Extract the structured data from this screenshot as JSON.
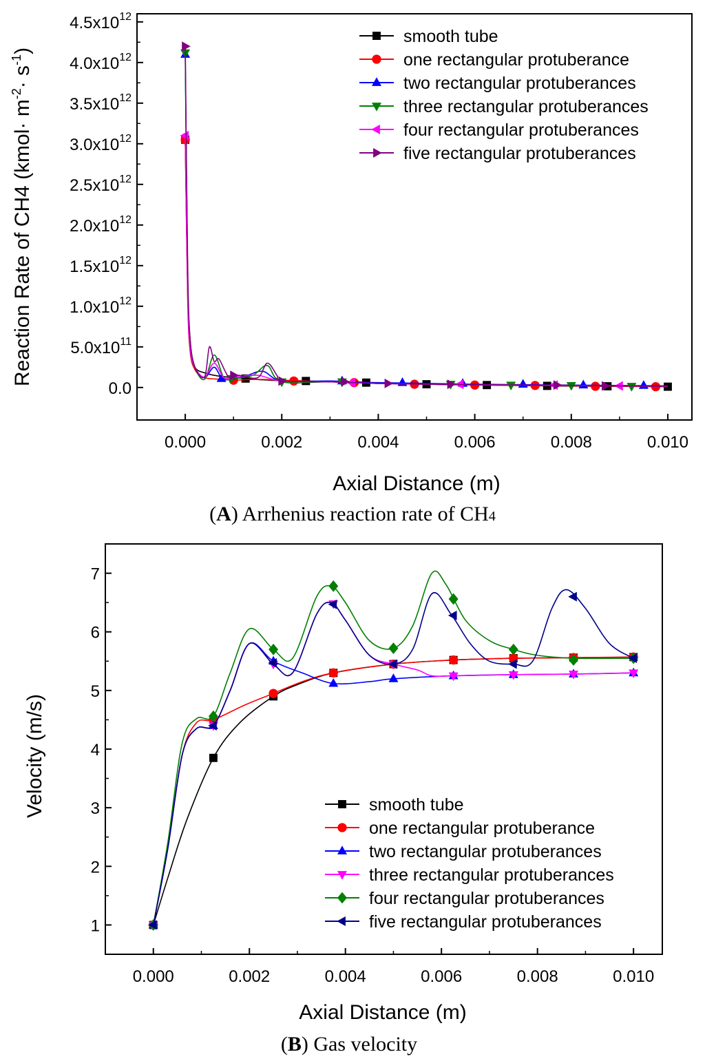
{
  "chart_data": [
    {
      "type": "line",
      "panel": "A",
      "caption_letter": "A",
      "caption_text": ") Arrhenius reaction rate of CH",
      "caption_sub": "4",
      "xlabel": "Axial Distance (m)",
      "ylabel": "Reaction Rate of CH4 (kmol· m-2· s-1)",
      "ylabel_main": "Reaction Rate of CH4 (kmol·  m",
      "ylabel_exp1": "-2",
      "ylabel_mid": "·  s",
      "ylabel_exp2": "-1",
      "ylabel_end": ")",
      "xlim": [
        -0.001,
        0.0105
      ],
      "ylim": [
        -400000000000.0,
        4600000000000.0
      ],
      "xticks": [
        {
          "v": 0.0,
          "label": "0.000"
        },
        {
          "v": 0.002,
          "label": "0.002"
        },
        {
          "v": 0.004,
          "label": "0.004"
        },
        {
          "v": 0.006,
          "label": "0.006"
        },
        {
          "v": 0.008,
          "label": "0.008"
        },
        {
          "v": 0.01,
          "label": "0.010"
        }
      ],
      "yticks": [
        {
          "v": 0,
          "label": "0.0"
        },
        {
          "v": 500000000000.0,
          "mant": "5.0x10",
          "exp": "11"
        },
        {
          "v": 1000000000000.0,
          "mant": "1.0x10",
          "exp": "12"
        },
        {
          "v": 1500000000000.0,
          "mant": "1.5x10",
          "exp": "12"
        },
        {
          "v": 2000000000000.0,
          "mant": "2.0x10",
          "exp": "12"
        },
        {
          "v": 2500000000000.0,
          "mant": "2.5x10",
          "exp": "12"
        },
        {
          "v": 3000000000000.0,
          "mant": "3.0x10",
          "exp": "12"
        },
        {
          "v": 3500000000000.0,
          "mant": "3.5x10",
          "exp": "12"
        },
        {
          "v": 4000000000000.0,
          "mant": "4.0x10",
          "exp": "12"
        },
        {
          "v": 4500000000000.0,
          "mant": "4.5x10",
          "exp": "12"
        }
      ],
      "legend_position": "top-right",
      "series": [
        {
          "name": "smooth tube",
          "color": "#000000",
          "marker": "square",
          "x": [
            0,
            5e-05,
            0.0001,
            0.0002,
            0.0004,
            0.0007,
            0.00125,
            0.00175,
            0.0025,
            0.00375,
            0.005,
            0.00625,
            0.0075,
            0.00875,
            0.01
          ],
          "y": [
            3050000000000.0,
            1200000000000.0,
            500000000000.0,
            250000000000.0,
            180000000000.0,
            140000000000.0,
            110000000000.0,
            90000000000.0,
            80000000000.0,
            60000000000.0,
            40000000000.0,
            30000000000.0,
            20000000000.0,
            15000000000.0,
            10000000000.0
          ],
          "marker_x": [
            0,
            0.00125,
            0.0025,
            0.00375,
            0.005,
            0.00625,
            0.0075,
            0.00875,
            0.01
          ],
          "marker_y": [
            3050000000000.0,
            110000000000.0,
            80000000000.0,
            60000000000.0,
            40000000000.0,
            30000000000.0,
            20000000000.0,
            15000000000.0,
            10000000000.0
          ]
        },
        {
          "name": "one rectangular protuberance",
          "color": "#ff0000",
          "marker": "circle",
          "x": [
            0,
            5e-05,
            0.0001,
            0.0002,
            0.0004,
            0.0008,
            0.001,
            0.0015,
            0.002,
            0.003,
            0.004,
            0.005,
            0.006,
            0.007,
            0.008,
            0.009,
            0.01
          ],
          "y": [
            3050000000000.0,
            1100000000000.0,
            450000000000.0,
            220000000000.0,
            120000000000.0,
            100000000000.0,
            90000000000.0,
            100000000000.0,
            90000000000.0,
            70000000000.0,
            50000000000.0,
            40000000000.0,
            30000000000.0,
            25000000000.0,
            20000000000.0,
            15000000000.0,
            10000000000.0
          ],
          "marker_x": [
            0,
            0.001,
            0.00225,
            0.0035,
            0.00475,
            0.006,
            0.00725,
            0.0085,
            0.00975
          ],
          "marker_y": [
            3050000000000.0,
            90000000000.0,
            80000000000.0,
            60000000000.0,
            40000000000.0,
            30000000000.0,
            25000000000.0,
            15000000000.0,
            10000000000.0
          ]
        },
        {
          "name": "two rectangular protuberances",
          "color": "#0000ff",
          "marker": "triangle-up",
          "x": [
            0,
            5e-05,
            0.0001,
            0.0002,
            0.0004,
            0.0006,
            0.0008,
            0.0012,
            0.0016,
            0.002,
            0.003,
            0.004,
            0.005,
            0.006,
            0.007,
            0.008,
            0.009,
            0.01
          ],
          "y": [
            4100000000000.0,
            1300000000000.0,
            500000000000.0,
            250000000000.0,
            120000000000.0,
            250000000000.0,
            100000000000.0,
            130000000000.0,
            200000000000.0,
            80000000000.0,
            80000000000.0,
            60000000000.0,
            50000000000.0,
            40000000000.0,
            35000000000.0,
            30000000000.0,
            25000000000.0,
            20000000000.0
          ],
          "marker_x": [
            0,
            0.00075,
            0.00325,
            0.0045,
            0.00575,
            0.007,
            0.00825,
            0.0095
          ],
          "marker_y": [
            4100000000000.0,
            110000000000.0,
            80000000000.0,
            60000000000.0,
            50000000000.0,
            40000000000.0,
            30000000000.0,
            25000000000.0
          ]
        },
        {
          "name": "three rectangular protuberances",
          "color": "#008000",
          "marker": "triangle-down",
          "x": [
            0,
            5e-05,
            0.0001,
            0.0002,
            0.0004,
            0.0006,
            0.0008,
            0.001,
            0.0014,
            0.0017,
            0.002,
            0.003,
            0.004,
            0.005,
            0.006,
            0.007,
            0.008,
            0.009,
            0.01
          ],
          "y": [
            4120000000000.0,
            1400000000000.0,
            600000000000.0,
            250000000000.0,
            100000000000.0,
            400000000000.0,
            120000000000.0,
            110000000000.0,
            150000000000.0,
            270000000000.0,
            70000000000.0,
            70000000000.0,
            50000000000.0,
            40000000000.0,
            35000000000.0,
            30000000000.0,
            25000000000.0,
            20000000000.0,
            15000000000.0
          ],
          "marker_x": [
            0,
            0.00095,
            0.002,
            0.00325,
            0.0055,
            0.00675,
            0.008,
            0.00925
          ],
          "marker_y": [
            4120000000000.0,
            110000000000.0,
            70000000000.0,
            70000000000.0,
            40000000000.0,
            30000000000.0,
            25000000000.0,
            15000000000.0
          ]
        },
        {
          "name": "four rectangular protuberances",
          "color": "#ff00ff",
          "marker": "triangle-left",
          "x": [
            0,
            5e-05,
            0.0001,
            0.0002,
            0.0004,
            0.0006,
            0.0008,
            0.001,
            0.0015,
            0.002,
            0.003,
            0.004,
            0.005,
            0.006,
            0.007,
            0.008,
            0.009,
            0.01
          ],
          "y": [
            3100000000000.0,
            1200000000000.0,
            500000000000.0,
            250000000000.0,
            130000000000.0,
            300000000000.0,
            120000000000.0,
            130000000000.0,
            150000000000.0,
            80000000000.0,
            70000000000.0,
            50000000000.0,
            40000000000.0,
            35000000000.0,
            30000000000.0,
            25000000000.0,
            20000000000.0,
            15000000000.0
          ],
          "marker_x": [
            0,
            0.00345,
            0.0057,
            0.00765,
            0.009
          ],
          "marker_y": [
            3100000000000.0,
            60000000000.0,
            40000000000.0,
            30000000000.0,
            20000000000.0
          ]
        },
        {
          "name": "five rectangular protuberances",
          "color": "#800080",
          "marker": "triangle-right",
          "x": [
            0,
            5e-05,
            0.0001,
            0.0002,
            0.0004,
            0.0005,
            0.0006,
            0.0007,
            0.0009,
            0.0011,
            0.0015,
            0.0017,
            0.0019,
            0.002,
            0.003,
            0.004,
            0.005,
            0.006,
            0.007,
            0.008,
            0.009,
            0.01
          ],
          "y": [
            4200000000000.0,
            1500000000000.0,
            600000000000.0,
            250000000000.0,
            130000000000.0,
            500000000000.0,
            320000000000.0,
            350000000000.0,
            130000000000.0,
            150000000000.0,
            120000000000.0,
            300000000000.0,
            150000000000.0,
            80000000000.0,
            70000000000.0,
            50000000000.0,
            40000000000.0,
            35000000000.0,
            30000000000.0,
            25000000000.0,
            20000000000.0,
            15000000000.0
          ],
          "marker_x": [
            0,
            0.001,
            0.002,
            0.0033,
            0.0042,
            0.0055,
            0.0077,
            0.0087
          ],
          "marker_y": [
            4200000000000.0,
            150000000000.0,
            80000000000.0,
            70000000000.0,
            50000000000.0,
            40000000000.0,
            30000000000.0,
            20000000000.0
          ]
        }
      ]
    },
    {
      "type": "line",
      "panel": "B",
      "caption_letter": "B",
      "caption_text": ") Gas velocity",
      "xlabel": "Axial Distance (m)",
      "ylabel": "Velocity (m/s)",
      "xlim": [
        -0.001,
        0.0106
      ],
      "ylim": [
        0.5,
        7.5
      ],
      "xticks": [
        {
          "v": 0.0,
          "label": "0.000"
        },
        {
          "v": 0.002,
          "label": "0.002"
        },
        {
          "v": 0.004,
          "label": "0.004"
        },
        {
          "v": 0.006,
          "label": "0.006"
        },
        {
          "v": 0.008,
          "label": "0.008"
        },
        {
          "v": 0.01,
          "label": "0.010"
        }
      ],
      "yticks": [
        {
          "v": 1,
          "label": "1"
        },
        {
          "v": 2,
          "label": "2"
        },
        {
          "v": 3,
          "label": "3"
        },
        {
          "v": 4,
          "label": "4"
        },
        {
          "v": 5,
          "label": "5"
        },
        {
          "v": 6,
          "label": "6"
        },
        {
          "v": 7,
          "label": "7"
        }
      ],
      "legend_position": "bottom-right",
      "series": [
        {
          "name": "smooth tube",
          "color": "#000000",
          "marker": "square",
          "x": [
            0,
            0.0003,
            0.0007,
            0.00125,
            0.0018,
            0.0025,
            0.003,
            0.00375,
            0.005,
            0.00625,
            0.0075,
            0.00875,
            0.01
          ],
          "y": [
            1.0,
            1.8,
            2.8,
            3.85,
            4.45,
            4.9,
            5.1,
            5.3,
            5.45,
            5.52,
            5.55,
            5.56,
            5.57
          ],
          "marker_x": [
            0,
            0.00125,
            0.0025,
            0.00375,
            0.005,
            0.00625,
            0.0075,
            0.00875,
            0.01
          ],
          "marker_y": [
            1.0,
            3.85,
            4.9,
            5.3,
            5.45,
            5.52,
            5.55,
            5.56,
            5.57
          ]
        },
        {
          "name": "one rectangular protuberance",
          "color": "#ff0000",
          "marker": "circle",
          "x": [
            0,
            0.0003,
            0.0006,
            0.0009,
            0.00125,
            0.0019,
            0.0025,
            0.0031,
            0.00375,
            0.005,
            0.00625,
            0.0075,
            0.00875,
            0.01
          ],
          "y": [
            1.0,
            2.3,
            3.9,
            4.45,
            4.5,
            4.75,
            4.95,
            5.15,
            5.3,
            5.45,
            5.52,
            5.55,
            5.56,
            5.57
          ],
          "marker_x": [
            0,
            0.00125,
            0.0025,
            0.00375,
            0.005,
            0.00625,
            0.0075,
            0.00875,
            0.01
          ],
          "marker_y": [
            1.0,
            4.5,
            4.95,
            5.3,
            5.45,
            5.52,
            5.55,
            5.56,
            5.57
          ]
        },
        {
          "name": "two rectangular protuberances",
          "color": "#0000ff",
          "marker": "triangle-up",
          "x": [
            0,
            0.0003,
            0.0006,
            0.0009,
            0.00125,
            0.0016,
            0.002,
            0.0025,
            0.0031,
            0.00375,
            0.0045,
            0.005,
            0.00625,
            0.0075,
            0.00875,
            0.01
          ],
          "y": [
            1.0,
            2.3,
            3.9,
            4.35,
            4.4,
            5.0,
            5.8,
            5.5,
            5.3,
            5.12,
            5.15,
            5.2,
            5.25,
            5.27,
            5.28,
            5.3
          ],
          "marker_x": [
            0,
            0.00125,
            0.0025,
            0.00375,
            0.005,
            0.00625,
            0.0075,
            0.00875,
            0.01
          ],
          "marker_y": [
            1.0,
            4.4,
            5.5,
            5.12,
            5.2,
            5.25,
            5.27,
            5.28,
            5.3
          ]
        },
        {
          "name": "three rectangular protuberances",
          "color": "#ff00ff",
          "marker": "triangle-down",
          "x": [
            0,
            0.0003,
            0.0006,
            0.0009,
            0.00125,
            0.0016,
            0.002,
            0.0025,
            0.0029,
            0.0034,
            0.0037,
            0.004,
            0.0045,
            0.005,
            0.0055,
            0.0058,
            0.00625,
            0.0075,
            0.00875,
            0.01
          ],
          "y": [
            1.0,
            2.3,
            3.9,
            4.35,
            4.4,
            5.0,
            5.8,
            5.45,
            5.3,
            6.3,
            6.5,
            6.2,
            5.6,
            5.45,
            5.35,
            5.25,
            5.25,
            5.27,
            5.28,
            5.3
          ],
          "marker_x": [
            0,
            0.00125,
            0.0025,
            0.00375,
            0.005,
            0.00625,
            0.0075,
            0.00875,
            0.01
          ],
          "marker_y": [
            1.0,
            4.4,
            5.45,
            6.48,
            5.45,
            5.25,
            5.27,
            5.28,
            5.3
          ]
        },
        {
          "name": "four rectangular protuberances",
          "color": "#008000",
          "marker": "diamond",
          "x": [
            0,
            0.0003,
            0.0006,
            0.0009,
            0.00125,
            0.0016,
            0.002,
            0.0025,
            0.0029,
            0.0034,
            0.0037,
            0.004,
            0.0045,
            0.005,
            0.0054,
            0.0058,
            0.0061,
            0.0065,
            0.007,
            0.0075,
            0.008,
            0.00875,
            0.01
          ],
          "y": [
            1.0,
            2.4,
            4.1,
            4.52,
            4.56,
            5.3,
            6.05,
            5.7,
            5.55,
            6.6,
            6.78,
            6.5,
            5.85,
            5.72,
            6.1,
            7.0,
            6.8,
            6.2,
            5.85,
            5.7,
            5.6,
            5.55,
            5.55
          ],
          "marker_x": [
            0,
            0.00125,
            0.0025,
            0.00375,
            0.005,
            0.00625,
            0.0075,
            0.00875,
            0.01
          ],
          "marker_y": [
            1.0,
            4.56,
            5.7,
            6.78,
            5.72,
            6.56,
            5.7,
            5.52,
            5.55
          ]
        },
        {
          "name": "five rectangular protuberances",
          "color": "#00008b",
          "marker": "triangle-left",
          "x": [
            0,
            0.0003,
            0.0006,
            0.0009,
            0.00125,
            0.0016,
            0.002,
            0.0025,
            0.0029,
            0.0034,
            0.0037,
            0.004,
            0.0045,
            0.005,
            0.0054,
            0.0058,
            0.0062,
            0.0066,
            0.007,
            0.0075,
            0.0079,
            0.0083,
            0.0086,
            0.009,
            0.0095,
            0.01
          ],
          "y": [
            1.0,
            2.3,
            3.9,
            4.35,
            4.4,
            5.0,
            5.8,
            5.45,
            5.3,
            6.3,
            6.5,
            6.2,
            5.6,
            5.45,
            5.7,
            6.65,
            6.3,
            5.8,
            5.5,
            5.45,
            5.5,
            6.4,
            6.72,
            6.4,
            5.8,
            5.55
          ],
          "marker_x": [
            0,
            0.00125,
            0.0025,
            0.00375,
            0.005,
            0.00625,
            0.0075,
            0.00875,
            0.01
          ],
          "marker_y": [
            1.0,
            4.4,
            5.47,
            6.47,
            5.45,
            6.28,
            5.45,
            6.6,
            5.55
          ]
        }
      ]
    }
  ]
}
